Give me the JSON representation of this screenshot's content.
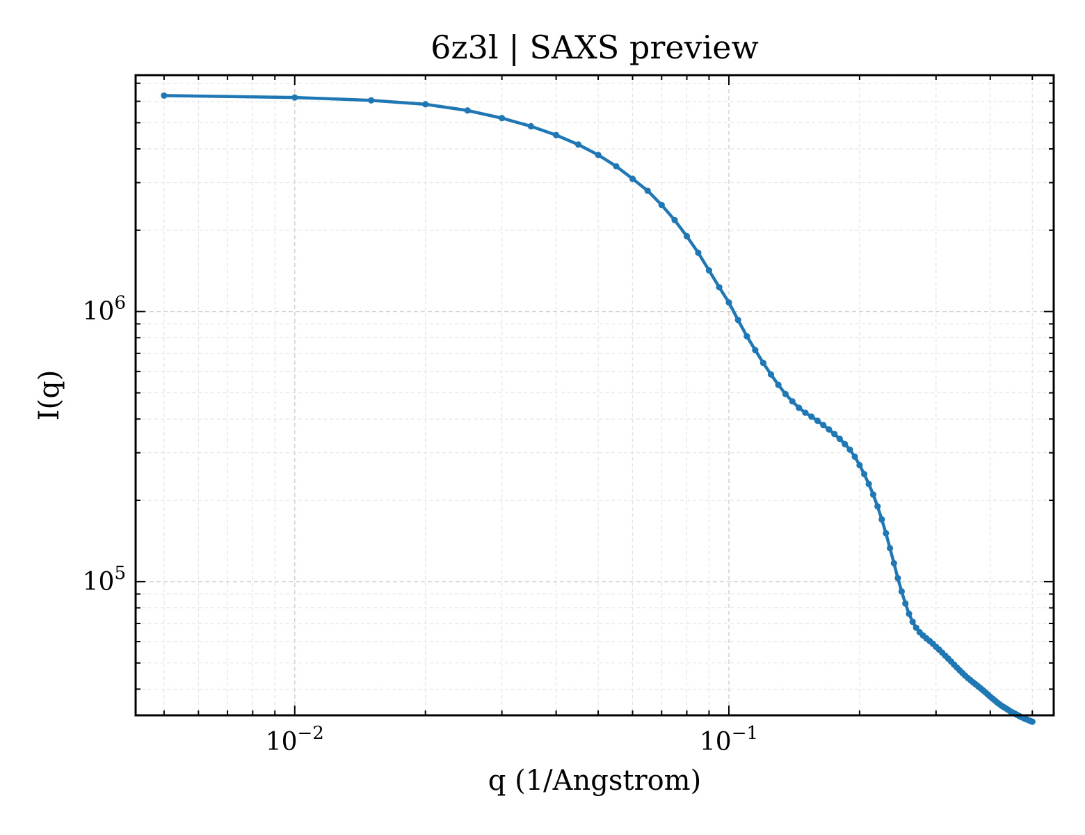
{
  "chart_data": {
    "type": "line",
    "title": "6z3l | SAXS preview",
    "xlabel": "q (1/Angstrom)",
    "ylabel": "I(q)",
    "xscale": "log",
    "yscale": "log",
    "xlim": [
      0.0043,
      0.56
    ],
    "ylim": [
      32000,
      7500000
    ],
    "grid": true,
    "ticks_direction": "in",
    "x_ticks": [
      {
        "value": 0.01,
        "base": "10",
        "exp": "−2"
      },
      {
        "value": 0.1,
        "base": "10",
        "exp": "−1"
      }
    ],
    "y_ticks": [
      {
        "value": 100000,
        "base": "10",
        "exp": "5"
      },
      {
        "value": 1000000,
        "base": "10",
        "exp": "6"
      }
    ],
    "colors": {
      "series": "#1f77b4"
    },
    "series": [
      {
        "points": [
          [
            0.005,
            6300000
          ],
          [
            0.01,
            6200000
          ],
          [
            0.015,
            6050000
          ],
          [
            0.02,
            5850000
          ],
          [
            0.025,
            5550000
          ],
          [
            0.03,
            5200000
          ],
          [
            0.035,
            4850000
          ],
          [
            0.04,
            4500000
          ],
          [
            0.045,
            4150000
          ],
          [
            0.05,
            3800000
          ],
          [
            0.055,
            3450000
          ],
          [
            0.06,
            3100000
          ],
          [
            0.065,
            2800000
          ],
          [
            0.07,
            2480000
          ],
          [
            0.075,
            2180000
          ],
          [
            0.08,
            1900000
          ],
          [
            0.085,
            1650000
          ],
          [
            0.09,
            1420000
          ],
          [
            0.095,
            1230000
          ],
          [
            0.1,
            1080000
          ],
          [
            0.105,
            930000
          ],
          [
            0.11,
            810000
          ],
          [
            0.115,
            720000
          ],
          [
            0.12,
            645000
          ],
          [
            0.125,
            585000
          ],
          [
            0.13,
            535000
          ],
          [
            0.135,
            495000
          ],
          [
            0.14,
            465000
          ],
          [
            0.145,
            440000
          ],
          [
            0.15,
            422000
          ],
          [
            0.155,
            408000
          ],
          [
            0.16,
            394000
          ],
          [
            0.165,
            380000
          ],
          [
            0.17,
            366000
          ],
          [
            0.175,
            352000
          ],
          [
            0.18,
            338000
          ],
          [
            0.185,
            323000
          ],
          [
            0.19,
            308000
          ],
          [
            0.195,
            290000
          ],
          [
            0.2,
            270000
          ],
          [
            0.205,
            250000
          ],
          [
            0.21,
            230000
          ],
          [
            0.215,
            210000
          ],
          [
            0.22,
            190000
          ],
          [
            0.225,
            170000
          ],
          [
            0.23,
            151000
          ],
          [
            0.235,
            133000
          ],
          [
            0.24,
            117000
          ],
          [
            0.245,
            103000
          ],
          [
            0.25,
            92000
          ],
          [
            0.255,
            83000
          ],
          [
            0.26,
            76000
          ],
          [
            0.265,
            71000
          ],
          [
            0.27,
            67500
          ],
          [
            0.275,
            65000
          ],
          [
            0.28,
            63200
          ],
          [
            0.285,
            61700
          ],
          [
            0.29,
            60300
          ],
          [
            0.295,
            58900
          ],
          [
            0.3,
            57400
          ],
          [
            0.305,
            56000
          ],
          [
            0.31,
            54600
          ],
          [
            0.315,
            53200
          ],
          [
            0.32,
            51900
          ],
          [
            0.325,
            50600
          ],
          [
            0.33,
            49300
          ],
          [
            0.335,
            48100
          ],
          [
            0.34,
            47000
          ],
          [
            0.345,
            45900
          ],
          [
            0.35,
            44900
          ],
          [
            0.355,
            44000
          ],
          [
            0.36,
            43200
          ],
          [
            0.365,
            42400
          ],
          [
            0.37,
            41700
          ],
          [
            0.375,
            41000
          ],
          [
            0.38,
            40300
          ],
          [
            0.385,
            39600
          ],
          [
            0.39,
            38900
          ],
          [
            0.395,
            38200
          ],
          [
            0.4,
            37500
          ],
          [
            0.405,
            36900
          ],
          [
            0.41,
            36300
          ],
          [
            0.415,
            35700
          ],
          [
            0.42,
            35200
          ],
          [
            0.425,
            34700
          ],
          [
            0.43,
            34300
          ],
          [
            0.435,
            33900
          ],
          [
            0.44,
            33500
          ],
          [
            0.445,
            33100
          ],
          [
            0.45,
            32800
          ],
          [
            0.455,
            32500
          ],
          [
            0.46,
            32200
          ],
          [
            0.465,
            31900
          ],
          [
            0.47,
            31600
          ],
          [
            0.475,
            31400
          ],
          [
            0.48,
            31100
          ],
          [
            0.485,
            30900
          ],
          [
            0.49,
            30700
          ],
          [
            0.495,
            30500
          ],
          [
            0.5,
            30300
          ]
        ]
      }
    ]
  }
}
